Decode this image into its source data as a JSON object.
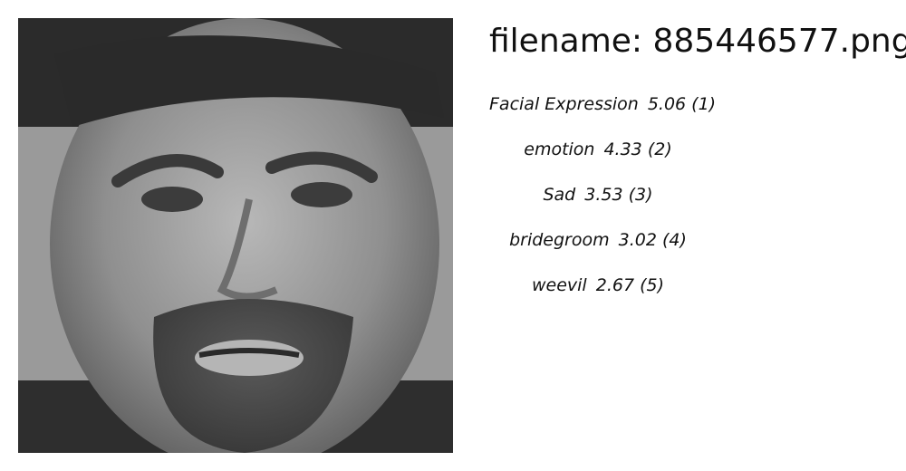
{
  "filename_label": "filename: 885446577.png",
  "photo": {
    "subject": "grayscale close-up face of a man"
  },
  "predictions": [
    {
      "label": "Facial Expression",
      "score": "5.06",
      "rank": "(1)"
    },
    {
      "label": "emotion",
      "score": "4.33",
      "rank": "(2)"
    },
    {
      "label": "Sad",
      "score": "3.53",
      "rank": "(3)"
    },
    {
      "label": "bridegroom",
      "score": "3.02",
      "rank": "(4)"
    },
    {
      "label": "weevil",
      "score": "2.67",
      "rank": "(5)"
    }
  ]
}
